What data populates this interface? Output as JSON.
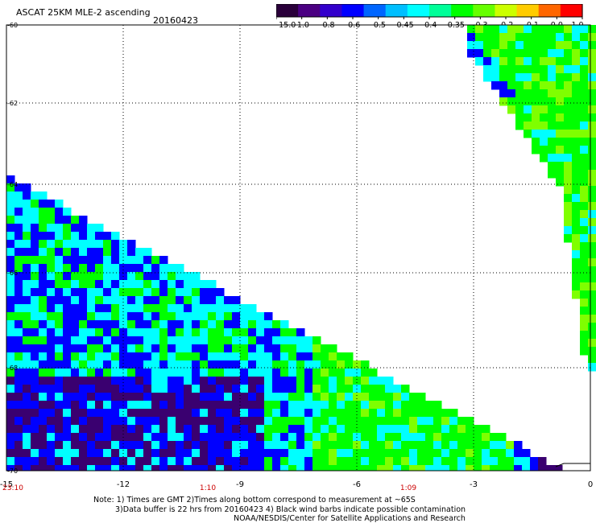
{
  "header": {
    "title": "ASCAT 25KM MLE-2 ascending",
    "date": "20160423"
  },
  "colorbar": {
    "labels": [
      "-15.0",
      "-1.0",
      "-0.8",
      "-0.6",
      "-0.5",
      "-0.45",
      "-0.4",
      "-0.35",
      "-0.3",
      "-0.2",
      "-0.1",
      "0.0",
      "1.0"
    ],
    "colors": [
      "#2a003a",
      "#4b0082",
      "#3300cc",
      "#0000ff",
      "#0066ff",
      "#00bfff",
      "#00ffff",
      "#00ff99",
      "#00ff00",
      "#66ff00",
      "#ccff00",
      "#ffcc00",
      "#ff6600",
      "#ff0000"
    ]
  },
  "axes": {
    "x_ticks": [
      "-15",
      "-12",
      "-9",
      "-6",
      "-3",
      "0"
    ],
    "y_ticks": [
      "-60",
      "-62",
      "-64",
      "-66",
      "-68",
      "-70"
    ],
    "times": [
      "23:10",
      "1:10",
      "1:09"
    ],
    "time_color": "#cc0000"
  },
  "notes": {
    "line1": "Note: 1) Times are GMT 2)Times along bottom correspond to measurement at ~65S",
    "line2": "3)Data buffer is 22 hrs from 20160423 4) Black wind barbs indicate possible contamination",
    "line3": "NOAA/NESDIS/Center for Satellite Applications and Research"
  },
  "palette": {
    "deep_purple": "#3a0070",
    "blue": "#0000ff",
    "cyan": "#00ffff",
    "green": "#00ff00",
    "lime": "#7fff00"
  }
}
